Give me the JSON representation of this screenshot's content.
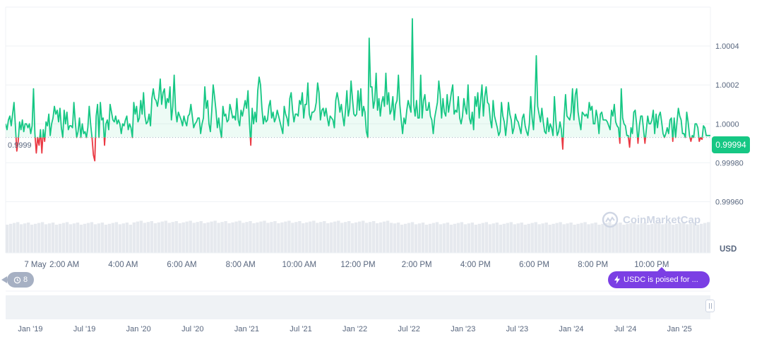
{
  "ref_price_label": "0.9999",
  "current_price_label": "0.99994",
  "currency_label": "USD",
  "watermark_text": "CoinMarketCap",
  "events_count": "8",
  "news_text": "USDC is poised for ...",
  "colors": {
    "up": "#16c784",
    "down": "#ea3943",
    "accent": "#7b3fe4",
    "grid": "#eff2f5",
    "volume": "#e6e9ee"
  },
  "icons": {
    "history": "history-icon",
    "lightning": "lightning-icon",
    "logo": "coinmarketcap-logo-icon"
  },
  "chart_data": {
    "type": "line",
    "title": "",
    "xlabel": "",
    "ylabel": "USD",
    "x_ticks": [
      "7 May",
      "2:00 AM",
      "4:00 AM",
      "6:00 AM",
      "8:00 AM",
      "10:00 AM",
      "12:00 PM",
      "2:00 PM",
      "4:00 PM",
      "6:00 PM",
      "8:00 PM",
      "10:00 PM"
    ],
    "y_ticks": [
      "0.99960",
      "0.99980",
      "1.0000",
      "1.0002",
      "1.0004"
    ],
    "ylim": [
      0.99954,
      1.0006
    ],
    "xlim": [
      0,
      24
    ],
    "reference_price": 0.99993,
    "grid": true,
    "legend": "none",
    "series": [
      {
        "values": [
          1.0,
          0.99997,
          1.00002,
          1.00004,
          0.99999,
          1.00005,
          1.00011,
          0.99999,
          0.99986,
          0.99991,
          1.00001,
          0.99997,
          1.00002,
          0.99996,
          1.0,
          1.0,
          0.99998,
          1.0,
          0.99995,
          0.99999,
          1.00018,
          0.99995,
          0.99985,
          0.99993,
          0.99989,
          0.99997,
          0.99985,
          0.99997,
          0.99991,
          1.00001,
          0.99999,
          1.00005,
          0.99994,
          1.0,
          1.00003,
          1.00009,
          1.00005,
          1.00007,
          1.00001,
          1.00008,
          0.99998,
          0.99993,
          1.00007,
          1.0,
          1.00006,
          0.99997,
          0.99999,
          0.99999,
          0.99998,
          1.00011,
          1.00001,
          0.99993,
          0.99996,
          1.00003,
          0.99993,
          1.0,
          0.99995,
          0.99996,
          0.99993,
          0.99998,
          1.00009,
          1.0,
          0.99993,
          0.99984,
          0.99981,
          1.00004,
          1.0001,
          0.99993,
          1.00011,
          1.00002,
          1.00003,
          0.99989,
          1.0,
          1.00002,
          0.99997,
          1.0001,
          1.00006,
          1.00002,
          1.00001,
          1.00004,
          1.0,
          1.00002,
          1.0,
          0.99995,
          1.0,
          0.99999,
          1.00002,
          1.00004,
          0.99997,
          1.0,
          0.99998,
          0.99993,
          1.00011,
          1.00005,
          1.00009,
          1.00001,
          1.00003,
          1.00012,
          1.00005,
          1.00016,
          1.00004,
          1.0,
          1.00001,
          1.00005,
          0.99999,
          1.00013,
          1.00018,
          1.00013,
          1.00012,
          1.00009,
          1.00014,
          1.00023,
          1.0001,
          1.00016,
          1.00018,
          1.00008,
          1.00013,
          1.00011,
          1.00019,
          1.00002,
          1.00009,
          1.00025,
          1.00007,
          1.00001,
          1.00006,
          1.00004,
          1.00002,
          0.99999,
          1.00004,
          1.00001,
          0.99999,
          1.00004,
          1.00005,
          1.0001,
          1.00004,
          0.99998,
          1.0,
          1.00001,
          1.00003,
          1.00003,
          0.99995,
          1.0,
          1.00003,
          1.00019,
          1.00008,
          1.00012,
          1.0,
          0.99996,
          1.00007,
          1.0002,
          1.00014,
          1.00007,
          0.99998,
          1.00003,
          0.99997,
          0.99993,
          1.00009,
          1.00004,
          1.00005,
          1.00001,
          1.00002,
          1.0001,
          1.00007,
          1.00003,
          1.00004,
          1.00002,
          1.00013,
          1.00002,
          0.99999,
          1.00007,
          1.00004,
          1.00008,
          1.00012,
          1.00008,
          1.00017,
          1.00001,
          0.99989,
          1.00008,
          1.0,
          1.00006,
          1.00001,
          1.00017,
          1.00024,
          1.0002,
          1.00008,
          1.0,
          1.00004,
          1.00001,
          1.00002,
          1.00009,
          1.00012,
          1.00003,
          1.00006,
          1.00001,
          1.00003,
          1.00007,
          1.00004,
          1.00001,
          0.99998,
          0.99995,
          1.00009,
          1.00005,
          1.00003,
          0.99999,
          1.00013,
          1.00016,
          1.00007,
          1.00001,
          1.00005,
          1.00005,
          1.00004,
          1.00012,
          1.0001,
          1.00016,
          1.00003,
          1.0001,
          1.0001,
          1.00021,
          1.00005,
          1.00002,
          1.00006,
          1.00006,
          1.00007,
          1.00011,
          1.00021,
          1.00016,
          1.00002,
          1.00007,
          1.00008,
          1.00004,
          1.00008,
          1.00003,
          0.99999,
          1.00004,
          1.00003,
          1.00002,
          0.99998,
          1.00012,
          1.00016,
          1.00012,
          1.00006,
          1.0001,
          1.00004,
          0.99999,
          1.00007,
          1.00017,
          1.00004,
          1.00008,
          1.00022,
          1.00013,
          1.00005,
          1.00004,
          1.00005,
          1.00017,
          1.00007,
          1.00018,
          1.00004,
          1.00009,
          1.00006,
          0.99996,
          0.99993,
          1.00044,
          1.00019,
          1.00019,
          1.00008,
          1.00012,
          1.00026,
          1.00007,
          1.00013,
          1.00004,
          1.00011,
          1.00014,
          1.00009,
          1.00026,
          1.0001,
          1.00016,
          1.00005,
          1.00007,
          1.00014,
          1.00002,
          1.0001,
          1.00012,
          1.00025,
          1.0001,
          1.00002,
          0.99995,
          1.00003,
          1.0,
          1.00007,
          1.00012,
          1.00009,
          1.00006,
          1.00054,
          1.0001,
          1.00004,
          1.00012,
          1.00003,
          1.00003,
          1.00025,
          1.00003,
          1.00012,
          1.00015,
          1.00007,
          1.00007,
          1.00011,
          1.00004,
          1.00002,
          0.99995,
          1.00003,
          1.00007,
          1.00011,
          1.00022,
          1.00015,
          1.00003,
          1.00013,
          1.00006,
          1.00004,
          1.00015,
          1.00006,
          1.00011,
          1.00016,
          1.0002,
          1.00005,
          1.00007,
          1.00006,
          1.00014,
          1.00003,
          1.0,
          1.00004,
          1.00013,
          1.00008,
          1.00005,
          1.0002,
          1.00003,
          1.0,
          1.00006,
          0.99997,
          1.00014,
          1.00009,
          1.00016,
          1.00003,
          1.00012,
          1.0002,
          1.00004,
          1.00014,
          1.00019,
          1.00011,
          1.0001,
          1.00002,
          0.99998,
          1.00012,
          1.00004,
          1.00001,
          0.99998,
          0.99994,
          0.99996,
          1.00011,
          1.00004,
          1.00001,
          0.99994,
          1.00001,
          1.00011,
          1.00005,
          1.00002,
          0.99995,
          0.99998,
          1.00005,
          1.00002,
          1.00001,
          0.99998,
          0.99995,
          1.00003,
          1.00005,
          0.99999,
          0.99996,
          0.99994,
          1.0,
          1.00014,
          1.00003,
          0.99997,
          1.00011,
          1.00035,
          1.00009,
          1.00005,
          1.00001,
          1.00008,
          1.00001,
          0.99996,
          0.99995,
          1.00003,
          0.99996,
          1.0,
          0.99998,
          0.99994,
          1.00014,
          1.00002,
          0.99994,
          0.99996,
          1.00001,
          0.99997,
          0.99987,
          1.00004,
          1.00015,
          1.00004,
          1.00003,
          1.00002,
          1.00006,
          1.00018,
          1.00002,
          1.00015,
          1.00018,
          1.00006,
          1.00001,
          0.99997,
          1.00006,
          1.00005,
          1.00004,
          1.00005,
          1.00003,
          1.00011,
          1.00007,
          1.00009,
          1.0,
          1.0,
          1.00007,
          1.00003,
          0.99995,
          1.00005,
          1.00006,
          1.00002,
          1.00002,
          1.00002,
          1.00001,
          0.99999,
          0.99997,
          1.00007,
          1.00004,
          1.0001,
          1.00001,
          0.99999,
          0.99998,
          0.9999,
          1.00018,
          1.00003,
          1.0,
          0.99999,
          0.99994,
          0.99994,
          0.99988,
          0.99998,
          0.99995,
          1.00006,
          1.00007,
          1.0,
          0.9999,
          0.99999,
          1.00004,
          1.00004,
          0.99997,
          0.9999,
          0.99997,
          1.00004,
          1.0,
          1.0,
          1.00002,
          1.00007,
          0.99995,
          1.00005,
          0.99998,
          1.00004,
          1.00006,
          1.00001,
          0.99995,
          0.99993,
          0.99995,
          0.99998,
          0.99995,
          1.00002,
          1.00003,
          0.99991,
          1.00003,
          0.99993,
          1.00001,
          1.00008,
          1.00004,
          1.00002,
          0.99995,
          0.99995,
          0.99993,
          1.00006,
          1.00001,
          0.99994,
          0.99991,
          0.99994,
          0.99993,
          1.0,
          1.0,
          0.99998,
          0.99991,
          0.99993,
          0.99992,
          0.99999,
          0.99998,
          0.99994,
          0.99994,
          0.99994,
          0.99994
        ]
      }
    ]
  },
  "navigator": {
    "labels": [
      "Jan '19",
      "Jul '19",
      "Jan '20",
      "Jul '20",
      "Jan '21",
      "Jul '21",
      "Jan '22",
      "Jul '22",
      "Jan '23",
      "Jul '23",
      "Jan '24",
      "Jul '24",
      "Jan '25"
    ]
  }
}
